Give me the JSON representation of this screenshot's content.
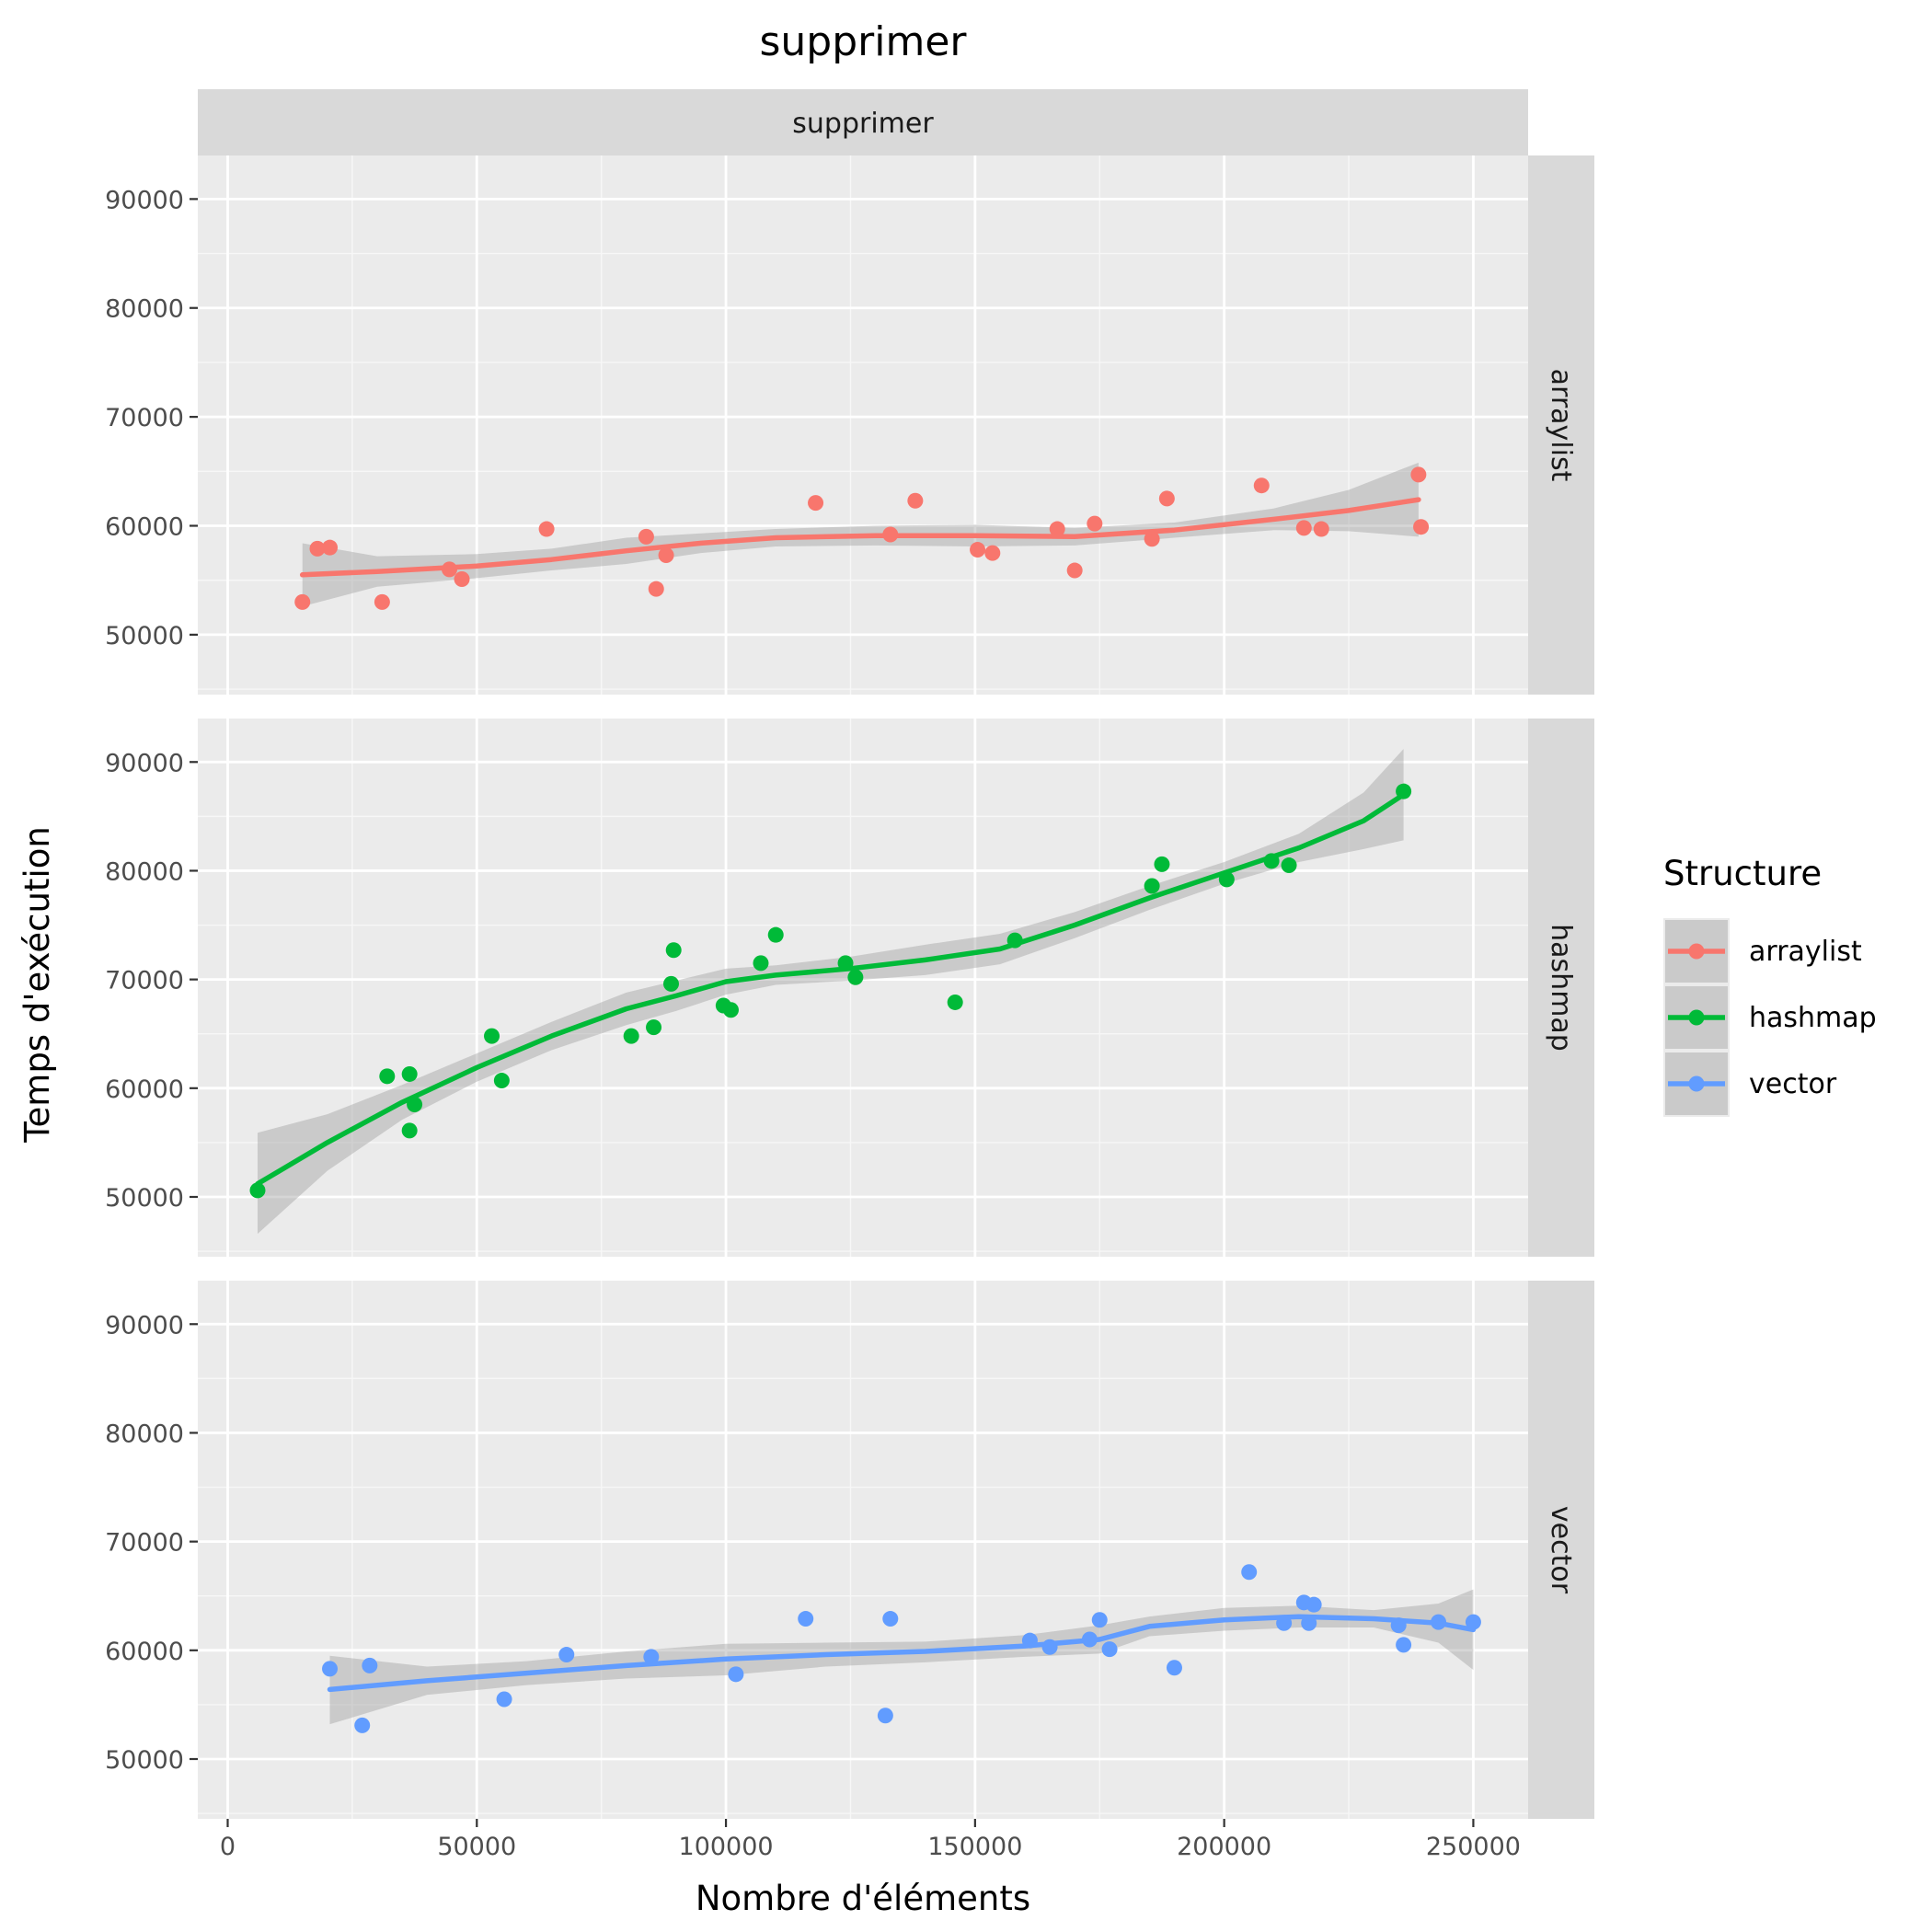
{
  "chart_data": {
    "type": "scatter",
    "title": "supprimer",
    "facet_top_label": "supprimer",
    "xlabel": "Nombre d'éléments",
    "ylabel": "Temps d'exécution",
    "xlim": [
      -6000,
      261000
    ],
    "ylim": [
      44500,
      94000
    ],
    "x_ticks": [
      0,
      50000,
      100000,
      150000,
      200000,
      250000
    ],
    "x_tick_labels": [
      "0",
      "50000",
      "100000",
      "150000",
      "200000",
      "250000"
    ],
    "y_ticks": [
      50000,
      60000,
      70000,
      80000,
      90000
    ],
    "y_tick_labels": [
      "50000",
      "60000",
      "70000",
      "80000",
      "90000"
    ],
    "grid": true,
    "smoothing": "loess with confidence band",
    "legend": {
      "title": "Structure",
      "position": "right"
    },
    "series": [
      {
        "name": "arraylist",
        "color": "#F8766D",
        "points": [
          [
            15000,
            53000
          ],
          [
            18000,
            57900
          ],
          [
            20500,
            58000
          ],
          [
            31000,
            53000
          ],
          [
            44500,
            56000
          ],
          [
            47000,
            55100
          ],
          [
            64000,
            59700
          ],
          [
            84000,
            59000
          ],
          [
            86000,
            54200
          ],
          [
            88000,
            57300
          ],
          [
            118000,
            62100
          ],
          [
            133000,
            59200
          ],
          [
            138000,
            62300
          ],
          [
            150500,
            57800
          ],
          [
            153500,
            57500
          ],
          [
            166500,
            59700
          ],
          [
            170000,
            55900
          ],
          [
            174000,
            60200
          ],
          [
            185500,
            58800
          ],
          [
            188500,
            62500
          ],
          [
            207500,
            63700
          ],
          [
            216000,
            59800
          ],
          [
            219500,
            59700
          ],
          [
            239000,
            64700
          ],
          [
            239500,
            59900
          ]
        ],
        "fit": [
          [
            15000,
            55500
          ],
          [
            30000,
            55800
          ],
          [
            50000,
            56300
          ],
          [
            65000,
            56900
          ],
          [
            80000,
            57700
          ],
          [
            95000,
            58400
          ],
          [
            110000,
            58900
          ],
          [
            130000,
            59100
          ],
          [
            150000,
            59100
          ],
          [
            170000,
            59000
          ],
          [
            190000,
            59600
          ],
          [
            210000,
            60600
          ],
          [
            225000,
            61400
          ],
          [
            239000,
            62400
          ]
        ],
        "band_upper": [
          [
            15000,
            58400
          ],
          [
            30000,
            57200
          ],
          [
            50000,
            57400
          ],
          [
            65000,
            57900
          ],
          [
            80000,
            58900
          ],
          [
            95000,
            59300
          ],
          [
            110000,
            59700
          ],
          [
            130000,
            60000
          ],
          [
            150000,
            60100
          ],
          [
            170000,
            59800
          ],
          [
            190000,
            60300
          ],
          [
            210000,
            61600
          ],
          [
            225000,
            63300
          ],
          [
            239000,
            65800
          ]
        ],
        "band_lower": [
          [
            15000,
            52600
          ],
          [
            30000,
            54400
          ],
          [
            50000,
            55200
          ],
          [
            65000,
            55900
          ],
          [
            80000,
            56500
          ],
          [
            95000,
            57500
          ],
          [
            110000,
            58100
          ],
          [
            130000,
            58200
          ],
          [
            150000,
            58100
          ],
          [
            170000,
            58200
          ],
          [
            190000,
            58900
          ],
          [
            210000,
            59600
          ],
          [
            225000,
            59500
          ],
          [
            239000,
            59000
          ]
        ]
      },
      {
        "name": "hashmap",
        "color": "#00BA38",
        "points": [
          [
            6000,
            50600
          ],
          [
            32000,
            61100
          ],
          [
            36500,
            61300
          ],
          [
            36500,
            56100
          ],
          [
            37500,
            58500
          ],
          [
            53000,
            64800
          ],
          [
            55000,
            60700
          ],
          [
            81000,
            64800
          ],
          [
            85500,
            65600
          ],
          [
            89000,
            69600
          ],
          [
            89500,
            72700
          ],
          [
            99500,
            67600
          ],
          [
            101000,
            67200
          ],
          [
            107000,
            71500
          ],
          [
            110000,
            74100
          ],
          [
            124000,
            71500
          ],
          [
            126000,
            70200
          ],
          [
            146000,
            67900
          ],
          [
            158000,
            73600
          ],
          [
            185500,
            78600
          ],
          [
            187500,
            80600
          ],
          [
            200500,
            79200
          ],
          [
            209500,
            80900
          ],
          [
            213000,
            80500
          ],
          [
            236000,
            87300
          ]
        ],
        "fit": [
          [
            6000,
            51200
          ],
          [
            20000,
            55000
          ],
          [
            35000,
            58700
          ],
          [
            50000,
            61900
          ],
          [
            65000,
            64800
          ],
          [
            80000,
            67300
          ],
          [
            90000,
            68500
          ],
          [
            100000,
            69800
          ],
          [
            110000,
            70400
          ],
          [
            125000,
            71000
          ],
          [
            140000,
            71800
          ],
          [
            155000,
            72800
          ],
          [
            170000,
            75000
          ],
          [
            185000,
            77500
          ],
          [
            200000,
            79800
          ],
          [
            215000,
            82100
          ],
          [
            228000,
            84600
          ],
          [
            236000,
            87000
          ]
        ],
        "band_upper": [
          [
            6000,
            55900
          ],
          [
            20000,
            57600
          ],
          [
            35000,
            60300
          ],
          [
            50000,
            63200
          ],
          [
            65000,
            66100
          ],
          [
            80000,
            68800
          ],
          [
            90000,
            69900
          ],
          [
            100000,
            71000
          ],
          [
            110000,
            71300
          ],
          [
            125000,
            72100
          ],
          [
            140000,
            73200
          ],
          [
            155000,
            74200
          ],
          [
            170000,
            76200
          ],
          [
            185000,
            78600
          ],
          [
            200000,
            80800
          ],
          [
            215000,
            83400
          ],
          [
            228000,
            87200
          ],
          [
            236000,
            91200
          ]
        ],
        "band_lower": [
          [
            6000,
            46600
          ],
          [
            20000,
            52400
          ],
          [
            35000,
            57100
          ],
          [
            50000,
            60600
          ],
          [
            65000,
            63500
          ],
          [
            80000,
            65800
          ],
          [
            90000,
            67100
          ],
          [
            100000,
            68600
          ],
          [
            110000,
            69500
          ],
          [
            125000,
            69900
          ],
          [
            140000,
            70400
          ],
          [
            155000,
            71400
          ],
          [
            170000,
            73800
          ],
          [
            185000,
            76400
          ],
          [
            200000,
            78800
          ],
          [
            215000,
            80800
          ],
          [
            228000,
            82000
          ],
          [
            236000,
            82800
          ]
        ]
      },
      {
        "name": "vector",
        "color": "#619CFF",
        "points": [
          [
            20500,
            58300
          ],
          [
            27000,
            53100
          ],
          [
            28500,
            58600
          ],
          [
            55500,
            55500
          ],
          [
            68000,
            59600
          ],
          [
            85000,
            59400
          ],
          [
            102000,
            57800
          ],
          [
            116000,
            62900
          ],
          [
            132000,
            54000
          ],
          [
            133000,
            62900
          ],
          [
            161000,
            60900
          ],
          [
            165000,
            60300
          ],
          [
            173000,
            61000
          ],
          [
            175000,
            62800
          ],
          [
            177000,
            60100
          ],
          [
            190000,
            58400
          ],
          [
            205000,
            67200
          ],
          [
            212000,
            62500
          ],
          [
            216000,
            64400
          ],
          [
            217000,
            62500
          ],
          [
            218000,
            64200
          ],
          [
            235000,
            62300
          ],
          [
            236000,
            60500
          ],
          [
            243000,
            62600
          ],
          [
            250000,
            62600
          ]
        ],
        "fit": [
          [
            20500,
            56400
          ],
          [
            40000,
            57200
          ],
          [
            60000,
            57900
          ],
          [
            80000,
            58600
          ],
          [
            100000,
            59200
          ],
          [
            120000,
            59600
          ],
          [
            140000,
            59900
          ],
          [
            160000,
            60400
          ],
          [
            175000,
            61000
          ],
          [
            185000,
            62200
          ],
          [
            200000,
            62800
          ],
          [
            215000,
            63100
          ],
          [
            230000,
            62900
          ],
          [
            243000,
            62500
          ],
          [
            250000,
            61900
          ]
        ],
        "band_upper": [
          [
            20500,
            59500
          ],
          [
            40000,
            58500
          ],
          [
            60000,
            59000
          ],
          [
            80000,
            59900
          ],
          [
            100000,
            60600
          ],
          [
            120000,
            60700
          ],
          [
            140000,
            60800
          ],
          [
            160000,
            61400
          ],
          [
            175000,
            62300
          ],
          [
            185000,
            63100
          ],
          [
            200000,
            63900
          ],
          [
            215000,
            64100
          ],
          [
            230000,
            63700
          ],
          [
            243000,
            64300
          ],
          [
            250000,
            65600
          ]
        ],
        "band_lower": [
          [
            20500,
            53200
          ],
          [
            40000,
            55900
          ],
          [
            60000,
            56800
          ],
          [
            80000,
            57400
          ],
          [
            100000,
            57700
          ],
          [
            120000,
            58500
          ],
          [
            140000,
            58900
          ],
          [
            160000,
            59400
          ],
          [
            175000,
            59700
          ],
          [
            185000,
            61300
          ],
          [
            200000,
            61800
          ],
          [
            215000,
            62100
          ],
          [
            230000,
            62100
          ],
          [
            243000,
            60700
          ],
          [
            250000,
            58200
          ]
        ]
      }
    ]
  }
}
